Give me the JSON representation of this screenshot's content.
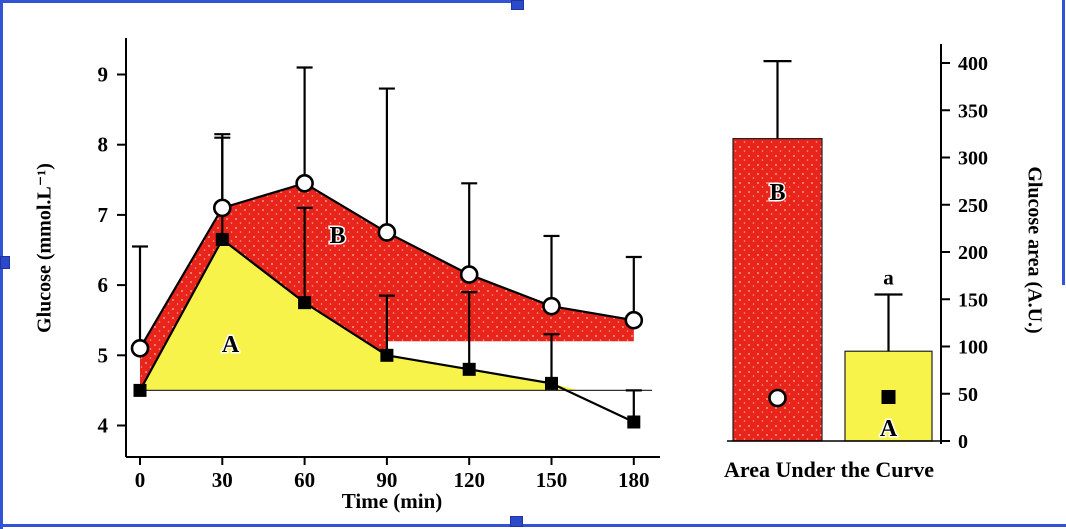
{
  "selection": {
    "border_color": "#3353d6",
    "handle_color": "#2b49c8"
  },
  "chart_data": [
    {
      "type": "line",
      "title": "",
      "xlabel": "Time (min)",
      "ylabel": "Glucose (mmol.L⁻¹)",
      "x": [
        0,
        30,
        60,
        90,
        120,
        150,
        180
      ],
      "xticks": [
        0,
        30,
        60,
        90,
        120,
        150,
        180
      ],
      "yticks": [
        4,
        5,
        6,
        7,
        8,
        9
      ],
      "xlim": [
        -12,
        192
      ],
      "ylim": [
        3.55,
        9.6
      ],
      "grid": false,
      "baseline_level": 4.5,
      "red_band_bottom_level": 5.2,
      "red_band_bottom_from_x": 90,
      "series": [
        {
          "name": "B",
          "marker": "open-circle",
          "line_color": "#000000",
          "area_color": "#e8241b",
          "values": [
            5.1,
            7.1,
            7.45,
            6.75,
            6.15,
            5.7,
            5.5
          ],
          "err_up": [
            1.45,
            1.05,
            1.65,
            2.05,
            1.3,
            1.0,
            0.9
          ],
          "label": "B",
          "label_at": {
            "x": 72,
            "y": 6.6
          }
        },
        {
          "name": "A",
          "marker": "filled-square",
          "line_color": "#000000",
          "area_color": "#f8f34a",
          "values": [
            4.5,
            6.65,
            5.75,
            5.0,
            4.8,
            4.6,
            4.05
          ],
          "err_up": [
            0,
            1.45,
            1.35,
            0.85,
            1.1,
            0.7,
            0.45
          ],
          "label": "A",
          "label_at": {
            "x": 33,
            "y": 5.05
          }
        }
      ]
    },
    {
      "type": "bar",
      "categories": [
        "B",
        "A"
      ],
      "values": [
        320,
        95
      ],
      "err_up": [
        82,
        60
      ],
      "bar_colors": [
        "#e8241b",
        "#f8f34a"
      ],
      "bar_markers": [
        "open-circle",
        "filled-square"
      ],
      "bar_labels": [
        "B",
        "A"
      ],
      "annotations": [
        "",
        "a"
      ],
      "xlabel": "Area Under the Curve",
      "ylabel": "Glucose area (A.U.)",
      "ylim": [
        0,
        430
      ],
      "yticks": [
        0,
        50,
        100,
        150,
        200,
        250,
        300,
        350,
        400
      ],
      "yaxis_side": "right",
      "legend_position": "none"
    }
  ]
}
